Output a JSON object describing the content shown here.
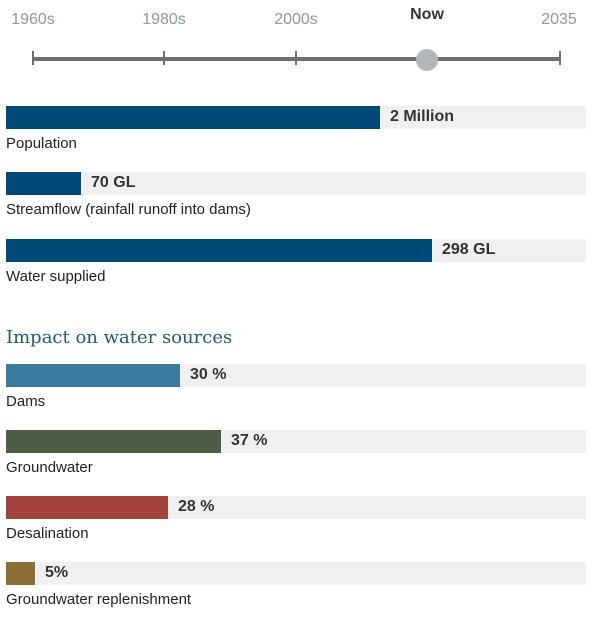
{
  "timeline": {
    "labels": [
      "1960s",
      "1980s",
      "2000s",
      "Now",
      "2035"
    ],
    "selected": "Now"
  },
  "metrics": [
    {
      "label": "Population",
      "value_text": "2 Million",
      "fraction": 0.644,
      "color": "#004a78"
    },
    {
      "label": "Streamflow (rainfall runoff into dams)",
      "value_text": "70 GL",
      "fraction": 0.129,
      "color": "#004a78"
    },
    {
      "label": "Water supplied",
      "value_text": "298 GL",
      "fraction": 0.735,
      "color": "#004a78"
    }
  ],
  "impact": {
    "title": "Impact on water sources",
    "items": [
      {
        "label": "Dams",
        "value_text": "30 %",
        "fraction": 0.3,
        "color": "#3a7a9c"
      },
      {
        "label": "Groundwater",
        "value_text": "37 %",
        "fraction": 0.37,
        "color": "#4d5e45"
      },
      {
        "label": "Desalination",
        "value_text": "28 %",
        "fraction": 0.28,
        "color": "#a3433b"
      },
      {
        "label": "Groundwater replenishment",
        "value_text": "5%",
        "fraction": 0.05,
        "color": "#8b6e35"
      }
    ]
  }
}
